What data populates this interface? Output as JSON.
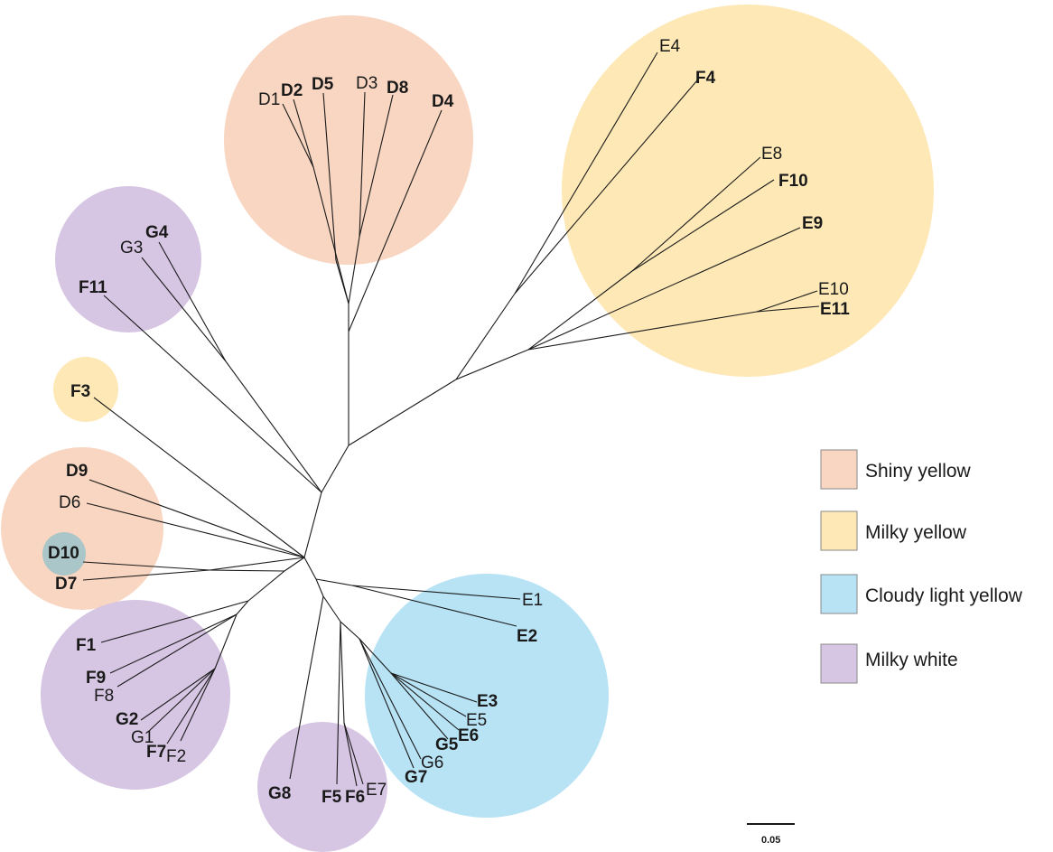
{
  "colors": {
    "shiny_yellow": "#f8d6c1",
    "milky_yellow": "#fde8b6",
    "cloudy_light_yellow": "#b7e3f5",
    "milky_white": "#d6c5e3",
    "overlap_teal": "#aac6c8",
    "branch": "#1a1a1a"
  },
  "legend": [
    {
      "label": "Shiny yellow",
      "color": "#f8d6c1"
    },
    {
      "label": "Milky yellow",
      "color": "#fde8b6"
    },
    {
      "label": "Cloudy light yellow",
      "color": "#b7e3f5"
    },
    {
      "label": "Milky white",
      "color": "#d6c5e3"
    }
  ],
  "scale_bar": {
    "label": "0.05"
  },
  "tips": [
    {
      "id": "D1",
      "label": "D1",
      "bold": false
    },
    {
      "id": "D2",
      "label": "D2",
      "bold": true
    },
    {
      "id": "D5",
      "label": "D5",
      "bold": true
    },
    {
      "id": "D3",
      "label": "D3",
      "bold": false
    },
    {
      "id": "D8",
      "label": "D8",
      "bold": true
    },
    {
      "id": "D4",
      "label": "D4",
      "bold": true
    },
    {
      "id": "E4",
      "label": "E4",
      "bold": false
    },
    {
      "id": "F4",
      "label": "F4",
      "bold": true
    },
    {
      "id": "E8",
      "label": "E8",
      "bold": false
    },
    {
      "id": "F10",
      "label": "F10",
      "bold": true
    },
    {
      "id": "E9",
      "label": "E9",
      "bold": true
    },
    {
      "id": "E10",
      "label": "E10",
      "bold": false
    },
    {
      "id": "E11",
      "label": "E11",
      "bold": true
    },
    {
      "id": "G3",
      "label": "G3",
      "bold": false
    },
    {
      "id": "G4",
      "label": "G4",
      "bold": true
    },
    {
      "id": "F11",
      "label": "F11",
      "bold": true
    },
    {
      "id": "F3",
      "label": "F3",
      "bold": true
    },
    {
      "id": "D9",
      "label": "D9",
      "bold": true
    },
    {
      "id": "D6",
      "label": "D6",
      "bold": false
    },
    {
      "id": "D10",
      "label": "D10",
      "bold": true
    },
    {
      "id": "D7",
      "label": "D7",
      "bold": true
    },
    {
      "id": "E1",
      "label": "E1",
      "bold": false
    },
    {
      "id": "E2",
      "label": "E2",
      "bold": true
    },
    {
      "id": "F1",
      "label": "F1",
      "bold": true
    },
    {
      "id": "F9",
      "label": "F9",
      "bold": true
    },
    {
      "id": "F8",
      "label": "F8",
      "bold": false
    },
    {
      "id": "G2",
      "label": "G2",
      "bold": true
    },
    {
      "id": "G1",
      "label": "G1",
      "bold": false
    },
    {
      "id": "F7",
      "label": "F7",
      "bold": true
    },
    {
      "id": "F2",
      "label": "F2",
      "bold": false
    },
    {
      "id": "E3",
      "label": "E3",
      "bold": true
    },
    {
      "id": "E5",
      "label": "E5",
      "bold": false
    },
    {
      "id": "E6",
      "label": "E6",
      "bold": true
    },
    {
      "id": "G5",
      "label": "G5",
      "bold": true
    },
    {
      "id": "G6",
      "label": "G6",
      "bold": false
    },
    {
      "id": "G7",
      "label": "G7",
      "bold": true
    },
    {
      "id": "G8",
      "label": "G8",
      "bold": true
    },
    {
      "id": "F5",
      "label": "F5",
      "bold": true
    },
    {
      "id": "F6",
      "label": "F6",
      "bold": true
    },
    {
      "id": "E7",
      "label": "E7",
      "bold": false
    }
  ]
}
